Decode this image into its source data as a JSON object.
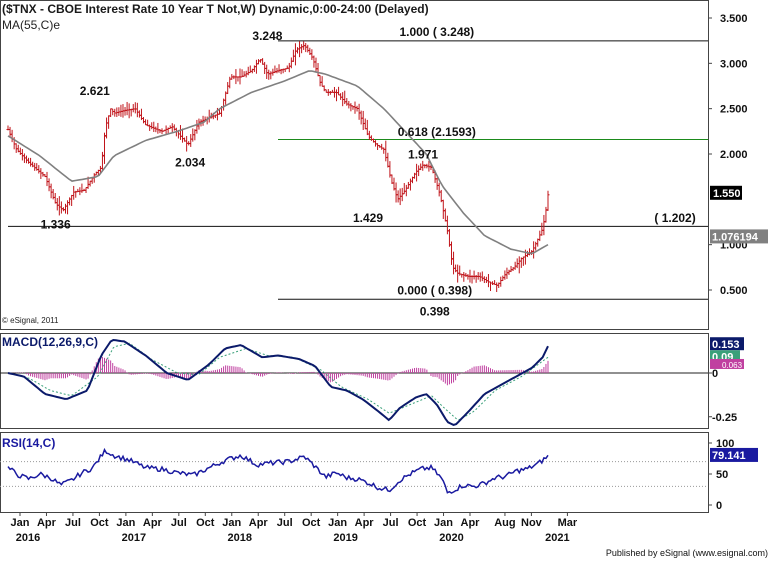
{
  "header": {
    "title": "($TNX - CBOE Interest Rate 10 Year T Not,W) Dynamic,0:00-24:00 (Delayed)",
    "ma_label": "MA(55,C)e",
    "copyright": "© eSignal, 2011",
    "footer": "Published by eSignal (www.esignal.com)"
  },
  "chart_data": [
    {
      "type": "line",
      "panel": "price",
      "subtype": "ohlc-bars",
      "y_ticks": [
        "3.500",
        "3.000",
        "2.500",
        "2.000",
        "1.000",
        "0.500"
      ],
      "ylim": [
        0.2,
        3.5
      ],
      "x_month_labels": [
        "Jan",
        "Apr",
        "Jul",
        "Oct",
        "Jan",
        "Apr",
        "Jul",
        "Oct",
        "Jan",
        "Apr",
        "Jul",
        "Oct",
        "Jan",
        "Apr",
        "Jul",
        "Oct",
        "Jan",
        "Apr",
        "Aug",
        "Nov",
        "Mar"
      ],
      "x_year_labels": [
        "2016",
        "2017",
        "2018",
        "2019",
        "2020",
        "2021"
      ],
      "series": [
        {
          "name": "",
          "kind": "price",
          "color": "#c0141a",
          "anchors": [
            [
              2016.0,
              2.27
            ],
            [
              2016.08,
              2.05
            ],
            [
              2016.2,
              1.9
            ],
            [
              2016.35,
              1.75
            ],
            [
              2016.45,
              1.45
            ],
            [
              2016.52,
              1.38
            ],
            [
              2016.62,
              1.58
            ],
            [
              2016.72,
              1.6
            ],
            [
              2016.82,
              1.78
            ],
            [
              2016.88,
              1.85
            ],
            [
              2016.92,
              2.3
            ],
            [
              2016.97,
              2.5
            ],
            [
              2017.0,
              2.45
            ],
            [
              2017.1,
              2.48
            ],
            [
              2017.2,
              2.5
            ],
            [
              2017.3,
              2.32
            ],
            [
              2017.45,
              2.25
            ],
            [
              2017.55,
              2.3
            ],
            [
              2017.7,
              2.1
            ],
            [
              2017.8,
              2.35
            ],
            [
              2017.9,
              2.4
            ],
            [
              2018.0,
              2.45
            ],
            [
              2018.1,
              2.85
            ],
            [
              2018.2,
              2.85
            ],
            [
              2018.3,
              2.92
            ],
            [
              2018.38,
              3.05
            ],
            [
              2018.45,
              2.88
            ],
            [
              2018.55,
              2.92
            ],
            [
              2018.65,
              2.95
            ],
            [
              2018.72,
              3.15
            ],
            [
              2018.8,
              3.2
            ],
            [
              2018.88,
              3.05
            ],
            [
              2018.95,
              2.78
            ],
            [
              2019.0,
              2.68
            ],
            [
              2019.1,
              2.68
            ],
            [
              2019.2,
              2.55
            ],
            [
              2019.3,
              2.5
            ],
            [
              2019.4,
              2.2
            ],
            [
              2019.48,
              2.1
            ],
            [
              2019.55,
              2.05
            ],
            [
              2019.62,
              1.7
            ],
            [
              2019.68,
              1.5
            ],
            [
              2019.75,
              1.6
            ],
            [
              2019.85,
              1.8
            ],
            [
              2019.92,
              1.88
            ],
            [
              2020.0,
              1.85
            ],
            [
              2020.08,
              1.55
            ],
            [
              2020.15,
              1.15
            ],
            [
              2020.2,
              0.75
            ],
            [
              2020.25,
              0.68
            ],
            [
              2020.35,
              0.65
            ],
            [
              2020.45,
              0.65
            ],
            [
              2020.55,
              0.58
            ],
            [
              2020.62,
              0.55
            ],
            [
              2020.7,
              0.68
            ],
            [
              2020.78,
              0.75
            ],
            [
              2020.85,
              0.85
            ],
            [
              2020.95,
              0.93
            ],
            [
              2021.0,
              1.05
            ],
            [
              2021.05,
              1.18
            ],
            [
              2021.08,
              1.38
            ],
            [
              2021.1,
              1.55
            ]
          ]
        },
        {
          "name": "MA(55,C)e",
          "kind": "ma",
          "color": "#808080",
          "anchors": [
            [
              2016.0,
              2.2
            ],
            [
              2016.3,
              1.98
            ],
            [
              2016.6,
              1.7
            ],
            [
              2016.85,
              1.75
            ],
            [
              2017.0,
              1.98
            ],
            [
              2017.3,
              2.15
            ],
            [
              2017.6,
              2.25
            ],
            [
              2017.85,
              2.35
            ],
            [
              2018.0,
              2.5
            ],
            [
              2018.3,
              2.68
            ],
            [
              2018.6,
              2.8
            ],
            [
              2018.85,
              2.92
            ],
            [
              2019.0,
              2.88
            ],
            [
              2019.3,
              2.75
            ],
            [
              2019.55,
              2.5
            ],
            [
              2019.75,
              2.25
            ],
            [
              2019.95,
              2.0
            ],
            [
              2020.1,
              1.65
            ],
            [
              2020.3,
              1.35
            ],
            [
              2020.5,
              1.1
            ],
            [
              2020.75,
              0.95
            ],
            [
              2020.95,
              0.9
            ],
            [
              2021.1,
              1.0
            ]
          ]
        }
      ],
      "annotations": [
        {
          "text": "3.248",
          "x": 2018.45,
          "y": 3.26
        },
        {
          "text": "1.000 ( 3.248)",
          "x": 2020.05,
          "y": 3.3
        },
        {
          "text": "2.621",
          "x": 2016.82,
          "y": 2.65
        },
        {
          "text": "2.034",
          "x": 2017.72,
          "y": 1.86
        },
        {
          "text": "1.336",
          "x": 2016.45,
          "y": 1.18
        },
        {
          "text": "0.618 (2.1593)",
          "x": 2020.05,
          "y": 2.2
        },
        {
          "text": "1.971",
          "x": 2019.92,
          "y": 1.95
        },
        {
          "text": "1.429",
          "x": 2019.4,
          "y": 1.25
        },
        {
          "text": "( 1.202)",
          "x": 2022.3,
          "y": 1.25
        },
        {
          "text": "0.000 ( 0.398)",
          "x": 2020.03,
          "y": 0.45
        },
        {
          "text": "0.398",
          "x": 2020.03,
          "y": 0.22
        }
      ],
      "hlines": [
        {
          "y": 3.248,
          "color": "#111111",
          "from": 2018.55
        },
        {
          "y": 2.1593,
          "color": "#1b8a1b",
          "from": 2018.55
        },
        {
          "y": 1.202,
          "color": "#111111",
          "from": 2016.0
        },
        {
          "y": 0.398,
          "color": "#111111",
          "from": 2018.55
        }
      ],
      "last_price_label": "1.550",
      "ma_value_label": "1.076194"
    },
    {
      "type": "line",
      "panel": "macd",
      "title": "MACD(12,26,9,C)",
      "y_ticks": [
        "0",
        "-0.25"
      ],
      "ylim": [
        -0.33,
        0.22
      ],
      "series": [
        {
          "name": "MACD",
          "color": "#0b1a6a",
          "anchors": [
            [
              2016.0,
              0.0
            ],
            [
              2016.15,
              -0.02
            ],
            [
              2016.35,
              -0.12
            ],
            [
              2016.55,
              -0.15
            ],
            [
              2016.75,
              -0.1
            ],
            [
              2016.88,
              0.1
            ],
            [
              2016.98,
              0.19
            ],
            [
              2017.1,
              0.18
            ],
            [
              2017.3,
              0.1
            ],
            [
              2017.5,
              0.0
            ],
            [
              2017.7,
              -0.04
            ],
            [
              2017.9,
              0.05
            ],
            [
              2018.05,
              0.14
            ],
            [
              2018.2,
              0.16
            ],
            [
              2018.4,
              0.09
            ],
            [
              2018.55,
              0.1
            ],
            [
              2018.75,
              0.08
            ],
            [
              2018.9,
              0.04
            ],
            [
              2019.05,
              -0.08
            ],
            [
              2019.2,
              -0.1
            ],
            [
              2019.35,
              -0.15
            ],
            [
              2019.5,
              -0.22
            ],
            [
              2019.6,
              -0.27
            ],
            [
              2019.7,
              -0.2
            ],
            [
              2019.85,
              -0.14
            ],
            [
              2019.95,
              -0.12
            ],
            [
              2020.05,
              -0.18
            ],
            [
              2020.15,
              -0.28
            ],
            [
              2020.22,
              -0.3
            ],
            [
              2020.35,
              -0.22
            ],
            [
              2020.5,
              -0.12
            ],
            [
              2020.65,
              -0.07
            ],
            [
              2020.8,
              -0.02
            ],
            [
              2020.95,
              0.03
            ],
            [
              2021.05,
              0.09
            ],
            [
              2021.1,
              0.153
            ]
          ]
        },
        {
          "name": "Signal",
          "color": "#3aa07a",
          "anchors": [
            [
              2016.0,
              0.0
            ],
            [
              2016.2,
              -0.03
            ],
            [
              2016.4,
              -0.1
            ],
            [
              2016.6,
              -0.13
            ],
            [
              2016.85,
              -0.02
            ],
            [
              2017.0,
              0.15
            ],
            [
              2017.15,
              0.17
            ],
            [
              2017.35,
              0.08
            ],
            [
              2017.6,
              0.0
            ],
            [
              2017.8,
              -0.01
            ],
            [
              2018.0,
              0.09
            ],
            [
              2018.25,
              0.14
            ],
            [
              2018.45,
              0.1
            ],
            [
              2018.7,
              0.09
            ],
            [
              2018.95,
              0.02
            ],
            [
              2019.15,
              -0.08
            ],
            [
              2019.4,
              -0.15
            ],
            [
              2019.6,
              -0.23
            ],
            [
              2019.8,
              -0.18
            ],
            [
              2020.0,
              -0.13
            ],
            [
              2020.12,
              -0.2
            ],
            [
              2020.25,
              -0.27
            ],
            [
              2020.4,
              -0.22
            ],
            [
              2020.6,
              -0.1
            ],
            [
              2020.85,
              -0.02
            ],
            [
              2021.1,
              0.09
            ]
          ]
        }
      ],
      "value_labels": [
        "0.153",
        "0.09",
        "0.063"
      ]
    },
    {
      "type": "line",
      "panel": "rsi",
      "title": "RSI(14,C)",
      "y_ticks": [
        "100",
        "50",
        "0"
      ],
      "ylim": [
        0,
        100
      ],
      "series": [
        {
          "name": "RSI",
          "color": "#1a1aa0",
          "anchors": [
            [
              2016.0,
              60
            ],
            [
              2016.1,
              48
            ],
            [
              2016.2,
              42
            ],
            [
              2016.3,
              50
            ],
            [
              2016.4,
              44
            ],
            [
              2016.5,
              32
            ],
            [
              2016.6,
              40
            ],
            [
              2016.7,
              52
            ],
            [
              2016.8,
              60
            ],
            [
              2016.92,
              88
            ],
            [
              2017.0,
              80
            ],
            [
              2017.15,
              72
            ],
            [
              2017.3,
              60
            ],
            [
              2017.45,
              58
            ],
            [
              2017.6,
              52
            ],
            [
              2017.75,
              48
            ],
            [
              2017.9,
              60
            ],
            [
              2018.05,
              72
            ],
            [
              2018.2,
              80
            ],
            [
              2018.35,
              65
            ],
            [
              2018.5,
              68
            ],
            [
              2018.65,
              70
            ],
            [
              2018.8,
              78
            ],
            [
              2018.9,
              62
            ],
            [
              2019.0,
              45
            ],
            [
              2019.1,
              52
            ],
            [
              2019.2,
              44
            ],
            [
              2019.3,
              42
            ],
            [
              2019.4,
              36
            ],
            [
              2019.5,
              28
            ],
            [
              2019.6,
              24
            ],
            [
              2019.7,
              40
            ],
            [
              2019.8,
              50
            ],
            [
              2019.9,
              58
            ],
            [
              2020.0,
              60
            ],
            [
              2020.1,
              42
            ],
            [
              2020.15,
              20
            ],
            [
              2020.22,
              25
            ],
            [
              2020.3,
              32
            ],
            [
              2020.4,
              30
            ],
            [
              2020.5,
              35
            ],
            [
              2020.6,
              44
            ],
            [
              2020.7,
              46
            ],
            [
              2020.8,
              55
            ],
            [
              2020.9,
              58
            ],
            [
              2021.0,
              66
            ],
            [
              2021.05,
              72
            ],
            [
              2021.1,
              79.141
            ]
          ]
        }
      ],
      "value_label": "79.141"
    }
  ]
}
